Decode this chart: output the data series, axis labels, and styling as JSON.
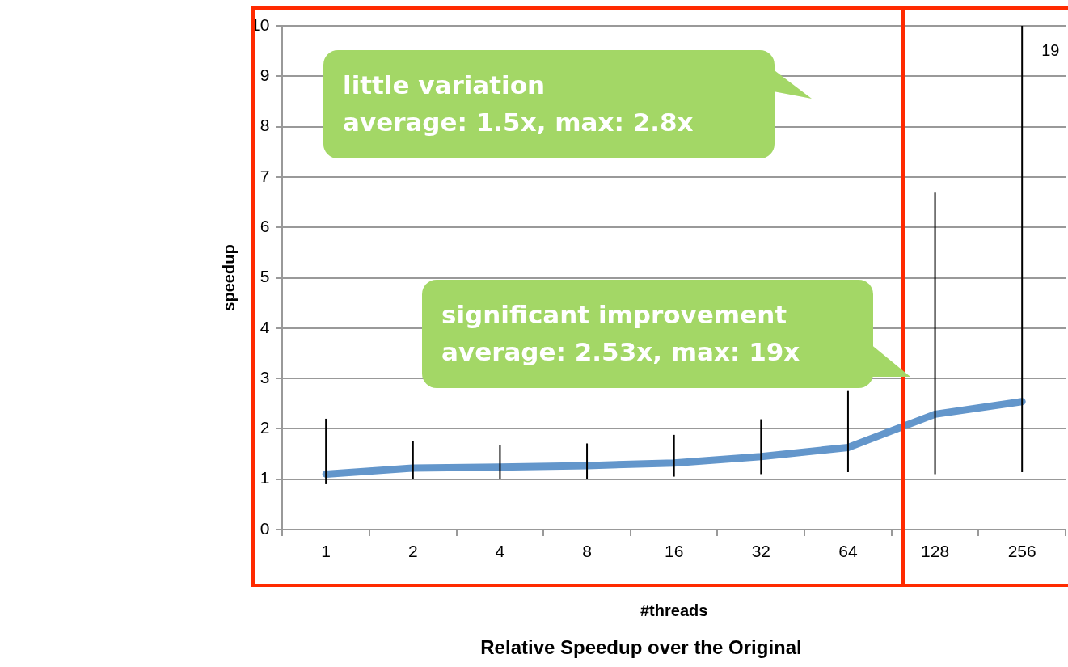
{
  "chart_data": {
    "type": "line",
    "title": "Relative Speedup over the Original",
    "xlabel": "#threads",
    "ylabel": "speedup",
    "categories": [
      "1",
      "2",
      "4",
      "8",
      "16",
      "32",
      "64",
      "128",
      "256"
    ],
    "series": [
      {
        "color": "#6396cb",
        "values": [
          1.1,
          1.22,
          1.24,
          1.27,
          1.32,
          1.45,
          1.63,
          2.29,
          2.54
        ],
        "errors": [
          [
            0.9,
            2.2
          ],
          [
            1.0,
            1.75
          ],
          [
            1.0,
            1.68
          ],
          [
            1.0,
            1.71
          ],
          [
            1.05,
            1.88
          ],
          [
            1.1,
            2.19
          ],
          [
            1.14,
            2.75
          ],
          [
            1.1,
            6.69
          ],
          [
            1.14,
            10
          ]
        ]
      }
    ],
    "ylim": [
      0,
      10
    ],
    "yticks": [
      0,
      1,
      2,
      3,
      4,
      5,
      6,
      7,
      8,
      9,
      10
    ],
    "grid": "y",
    "marker": "none",
    "legend": false,
    "annotations": [
      "little variation\naverage: 1.5x, max: 2.8x",
      "significant improvement\naverage: 2.53x, max: 19x",
      {
        "text": "19",
        "x": "256",
        "y": 9.5
      }
    ]
  }
}
